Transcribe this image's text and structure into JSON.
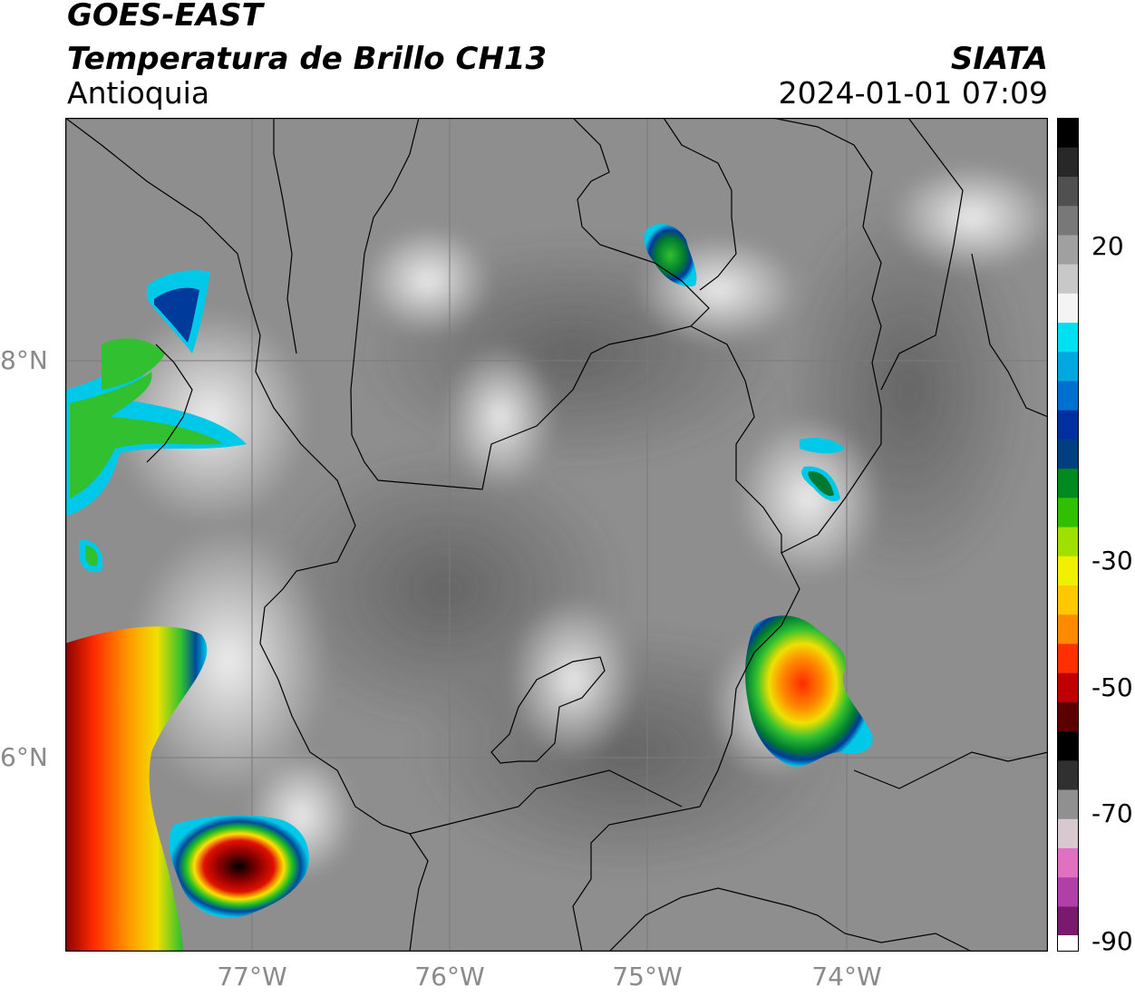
{
  "header": {
    "satellite": "GOES-EAST",
    "product": "Temperatura de Brillo CH13",
    "region": "Antioquia",
    "organization": "SIATA",
    "datetime": "2024-01-01 07:09"
  },
  "axes": {
    "lat_ticks": [
      "8°N",
      "6°N"
    ],
    "lon_ticks": [
      "77°W",
      "76°W",
      "75°W",
      "74°W"
    ]
  },
  "colorbar": {
    "ticks": [
      "20",
      "-30",
      "-50",
      "-70",
      "-90"
    ],
    "palette": [
      "#7a1a6e",
      "#b040a8",
      "#e070c0",
      "#d8c8d0",
      "#909090",
      "#303030",
      "#000000",
      "#5a0000",
      "#c00000",
      "#ff3000",
      "#ff8a00",
      "#ffc800",
      "#f0f000",
      "#a0e000",
      "#30c000",
      "#008a20",
      "#004080",
      "#0030a0",
      "#0070d0",
      "#00a8e0",
      "#00e0f0",
      "#f4f4f4",
      "#c8c8c8",
      "#a0a0a0",
      "#787878",
      "#505050",
      "#282828",
      "#000000"
    ]
  },
  "map": {
    "background_gray": "#8c8c8c",
    "gridline_color": "#7a7a7a",
    "border_color": "#000000",
    "cold_colors": {
      "very_cold": "#000000",
      "dark_red": "#a00000",
      "red": "#ff2000",
      "orange": "#ff9000",
      "yellow": "#ffe000",
      "green": "#20c020",
      "dark_green": "#007a30",
      "blue": "#003a9a",
      "cyan": "#00c8e8",
      "white": "#ffffff"
    }
  }
}
